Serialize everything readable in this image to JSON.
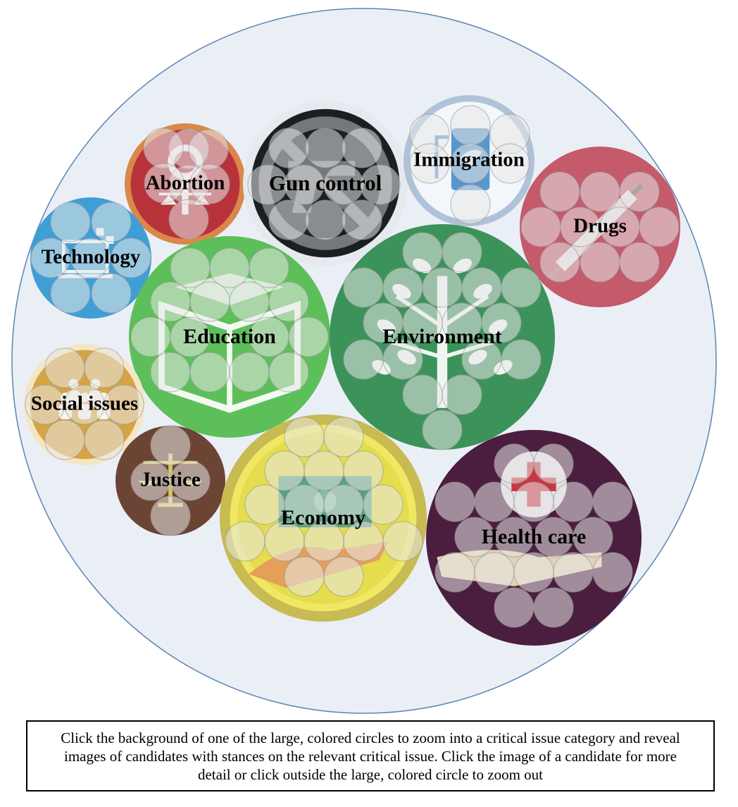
{
  "issues": [
    {
      "id": "abortion",
      "label": "Abortion",
      "icon": "female-symbol-scales-icon",
      "color": "#B8323A",
      "ring": "#D9874A"
    },
    {
      "id": "gun-control",
      "label": "Gun control",
      "icon": "no-guns-icon",
      "color": "#1A1F24",
      "ring": "#E6E9EE"
    },
    {
      "id": "immigration",
      "label": "Immigration",
      "icon": "passport-icon",
      "color": "#F3F6FA",
      "ring": "#AFC2D8"
    },
    {
      "id": "drugs",
      "label": "Drugs",
      "icon": "syringe-icon",
      "color": "#C45A6A",
      "ring": "#C45A6A"
    },
    {
      "id": "technology",
      "label": "Technology",
      "icon": "computer-icon",
      "color": "#3E9FD6",
      "ring": "#3E9FD6"
    },
    {
      "id": "education",
      "label": "Education",
      "icon": "open-book-icon",
      "color": "#5DBF5A",
      "ring": "#5DBF5A"
    },
    {
      "id": "environment",
      "label": "Environment",
      "icon": "tree-icon",
      "color": "#3C935A",
      "ring": "#3C935A"
    },
    {
      "id": "social-issues",
      "label": "Social issues",
      "icon": "people-group-icon",
      "color": "#D7A443",
      "ring": "#F4E6C6"
    },
    {
      "id": "justice",
      "label": "Justice",
      "icon": "scales-of-justice-icon",
      "color": "#6B4434",
      "ring": "#6B4434"
    },
    {
      "id": "economy",
      "label": "Economy",
      "icon": "money-hand-icon",
      "color": "#E5DC4E",
      "ring": "#C8BB52"
    },
    {
      "id": "health-care",
      "label": "Health care",
      "icon": "medical-cross-hand-icon",
      "color": "#4B1E3F",
      "ring": "#4B1E3F"
    }
  ],
  "colors": {
    "outer_fill": "#EAEFF6",
    "outer_stroke": "#5B86B5"
  },
  "instructions": "Click the background of one of the large, colored circles to zoom into a critical issue category and reveal images of candidates with stances on the relevant critical issue. Click the image of a candidate for more detail or click outside the large, colored circle to zoom out"
}
